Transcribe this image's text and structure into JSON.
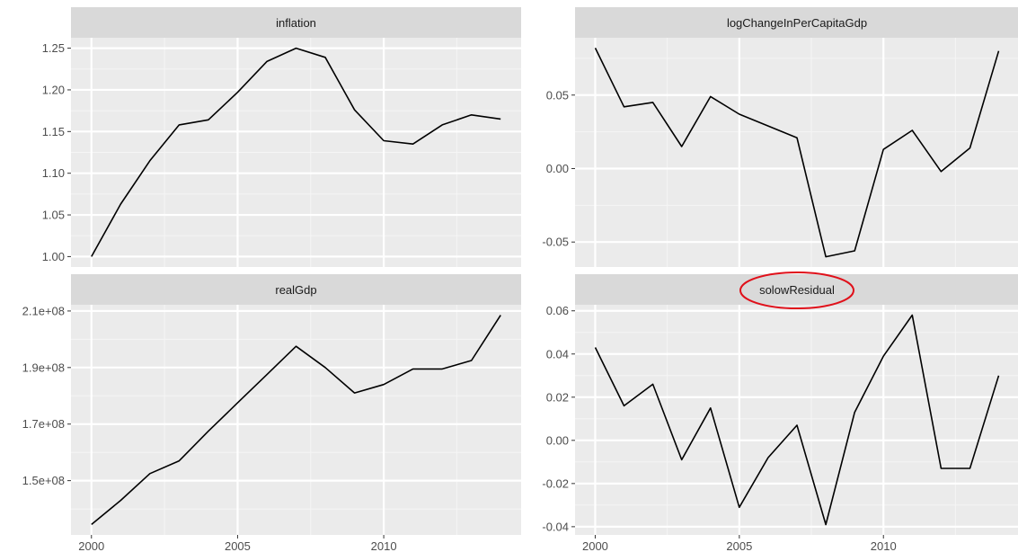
{
  "chart_data": [
    {
      "type": "line",
      "title": "inflation",
      "x": [
        2000,
        2001,
        2002,
        2003,
        2004,
        2005,
        2006,
        2007,
        2008,
        2009,
        2010,
        2011,
        2012,
        2013,
        2014
      ],
      "y": [
        1.0,
        1.063,
        1.115,
        1.158,
        1.164,
        1.197,
        1.234,
        1.25,
        1.239,
        1.176,
        1.139,
        1.135,
        1.158,
        1.17,
        1.165
      ],
      "xticks": [
        2000,
        2005,
        2010
      ],
      "xtick_labels": [
        "2000",
        "2005",
        "2010"
      ],
      "yticks": [
        1.0,
        1.05,
        1.1,
        1.15,
        1.2,
        1.25
      ],
      "ytick_labels": [
        "1.00",
        "1.05",
        "1.10",
        "1.15",
        "1.20",
        "1.25"
      ],
      "xlim": [
        1999.3,
        2014.7
      ],
      "ylim": [
        0.9875,
        1.2625
      ],
      "grid": true
    },
    {
      "type": "line",
      "title": "logChangeInPerCapitaGdp",
      "x": [
        2000,
        2001,
        2002,
        2003,
        2004,
        2005,
        2006,
        2007,
        2008,
        2009,
        2010,
        2011,
        2012,
        2013,
        2014
      ],
      "y": [
        0.082,
        0.042,
        0.045,
        0.015,
        0.049,
        0.037,
        0.029,
        0.021,
        -0.06,
        -0.056,
        0.013,
        0.026,
        -0.002,
        0.014,
        0.08
      ],
      "xticks": [
        2000,
        2005,
        2010
      ],
      "xtick_labels": [
        "2000",
        "2005",
        "2010"
      ],
      "yticks": [
        -0.05,
        0.0,
        0.05
      ],
      "ytick_labels": [
        "-0.05",
        "0.00",
        "0.05"
      ],
      "xlim": [
        1999.3,
        2014.7
      ],
      "ylim": [
        -0.067,
        0.089
      ],
      "grid": true
    },
    {
      "type": "line",
      "title": "realGdp",
      "x": [
        2000,
        2001,
        2002,
        2003,
        2004,
        2005,
        2006,
        2007,
        2008,
        2009,
        2010,
        2011,
        2012,
        2013,
        2014
      ],
      "y": [
        134500000,
        143000000,
        152500000,
        157000000,
        167500000,
        177500000,
        187500000,
        197500000,
        190000000,
        181000000,
        184000000,
        189500000,
        189500000,
        192500000,
        208500000
      ],
      "xticks": [
        2000,
        2005,
        2010
      ],
      "xtick_labels": [
        "2000",
        "2005",
        "2010"
      ],
      "yticks": [
        150000000,
        170000000,
        190000000,
        210000000
      ],
      "ytick_labels": [
        "1.5e+08",
        "1.7e+08",
        "1.9e+08",
        "2.1e+08"
      ],
      "xlim": [
        1999.3,
        2014.7
      ],
      "ylim": [
        130800000,
        212200000
      ],
      "grid": true
    },
    {
      "type": "line",
      "title": "solowResidual",
      "annotation": "red ellipse around panel title",
      "x": [
        2000,
        2001,
        2002,
        2003,
        2004,
        2005,
        2006,
        2007,
        2008,
        2009,
        2010,
        2011,
        2012,
        2013,
        2014
      ],
      "y": [
        0.043,
        0.016,
        0.026,
        -0.009,
        0.015,
        -0.031,
        -0.008,
        0.007,
        -0.039,
        0.013,
        0.039,
        0.058,
        -0.013,
        -0.013,
        0.03
      ],
      "xticks": [
        2000,
        2005,
        2010
      ],
      "xtick_labels": [
        "2000",
        "2005",
        "2010"
      ],
      "yticks": [
        -0.04,
        -0.02,
        0.0,
        0.02,
        0.04,
        0.06
      ],
      "ytick_labels": [
        "-0.04",
        "-0.02",
        "0.00",
        "0.02",
        "0.04",
        "0.06"
      ],
      "xlim": [
        1999.3,
        2014.7
      ],
      "ylim": [
        -0.0438,
        0.0628
      ],
      "grid": true
    }
  ],
  "colors": {
    "panel_background": "#ebebeb",
    "strip_background": "#d9d9d9",
    "grid_major": "#ffffff",
    "grid_minor": "#f5f5f5",
    "line": "#000000",
    "annotation": "#e0101a"
  }
}
